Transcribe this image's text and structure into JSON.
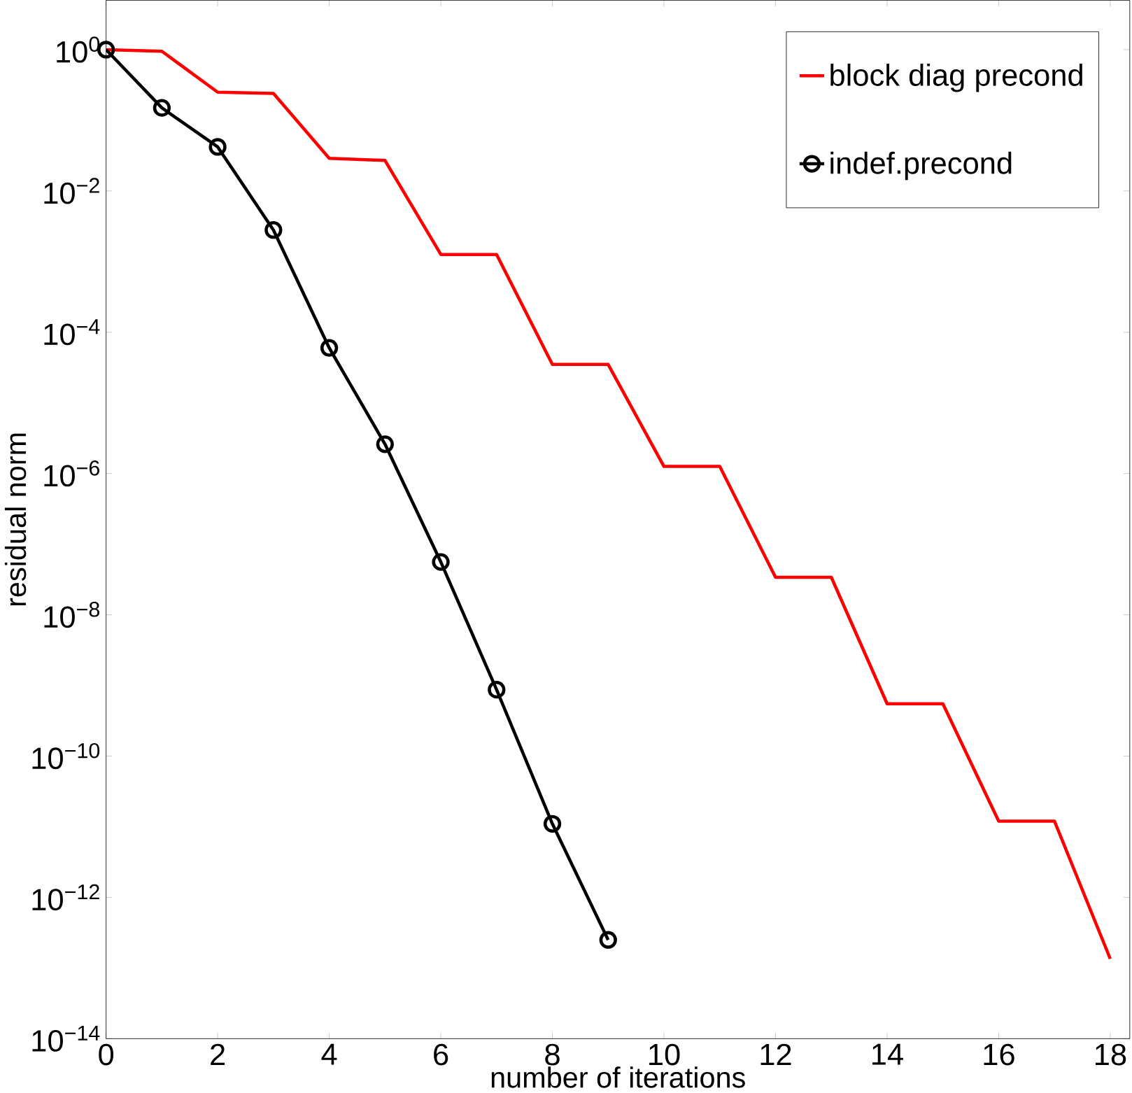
{
  "chart_data": {
    "type": "line",
    "xlabel": "number of iterations",
    "ylabel": "residual norm",
    "log": "y",
    "x": [
      0,
      1,
      2,
      3,
      4,
      5,
      6,
      7,
      8,
      9,
      10,
      11,
      12,
      13,
      14,
      15,
      16,
      17,
      18
    ],
    "xlim": [
      0,
      18.35
    ],
    "xticks": [
      0,
      2,
      4,
      6,
      8,
      10,
      12,
      14,
      16,
      18
    ],
    "ylim": [
      1e-14,
      5
    ],
    "yticks": [
      {
        "value": 1e-14,
        "label": "10$^{−14}$"
      },
      {
        "value": 1e-12,
        "label": "10$^{−12}$"
      },
      {
        "value": 1e-10,
        "label": "10$^{−10}$"
      },
      {
        "value": 1e-08,
        "label": "10$^{−8}$"
      },
      {
        "value": 1e-06,
        "label": "10$^{−6}$"
      },
      {
        "value": 0.0001,
        "label": "10$^{−4}$"
      },
      {
        "value": 0.01,
        "label": "10$^{−2}$"
      },
      {
        "value": 1,
        "label": "10$^{0}$"
      }
    ],
    "grid": false,
    "legend": "top right",
    "series": [
      {
        "name": "block diag precond",
        "color": "#ff0000",
        "marker": "none",
        "values": [
          1,
          0.95,
          0.25,
          0.24,
          0.029,
          0.027,
          0.00126,
          0.00126,
          3.5e-05,
          3.5e-05,
          1.26e-06,
          1.26e-06,
          3.4e-08,
          3.4e-08,
          5.5e-10,
          5.5e-10,
          1.2e-11,
          1.2e-11,
          1.35e-13
        ]
      },
      {
        "name": "indef.precond",
        "color": "#000000",
        "marker": "circle",
        "x": [
          0,
          1,
          2,
          3,
          4,
          5,
          6,
          7,
          8,
          9
        ],
        "values": [
          1,
          0.15,
          0.042,
          0.0028,
          6e-05,
          2.6e-06,
          5.6e-08,
          8.7e-10,
          1.1e-11,
          2.5e-13
        ]
      }
    ]
  }
}
